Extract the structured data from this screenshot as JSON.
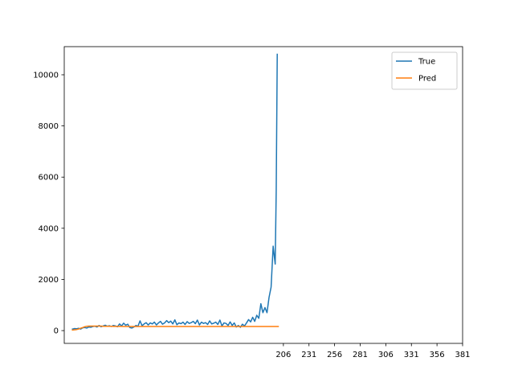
{
  "chart_data": {
    "type": "line",
    "x": [
      0,
      2,
      4,
      6,
      8,
      10,
      12,
      14,
      16,
      18,
      20,
      22,
      24,
      26,
      28,
      30,
      32,
      34,
      36,
      38,
      40,
      42,
      44,
      46,
      48,
      50,
      52,
      54,
      56,
      58,
      60,
      62,
      64,
      66,
      68,
      70,
      72,
      74,
      76,
      78,
      80,
      82,
      84,
      86,
      88,
      90,
      92,
      94,
      96,
      98,
      100,
      102,
      104,
      106,
      108,
      110,
      112,
      114,
      116,
      118,
      120,
      122,
      124,
      126,
      128,
      130,
      132,
      134,
      136,
      138,
      140,
      142,
      144,
      146,
      148,
      150,
      152,
      154,
      156,
      158,
      160,
      162,
      164,
      166,
      168,
      170,
      172,
      174,
      176,
      178,
      180,
      182,
      184,
      186,
      188,
      190,
      192,
      194,
      196,
      198,
      199,
      200,
      201
    ],
    "series": [
      {
        "name": "True",
        "color": "#1f77b4",
        "values": [
          60,
          80,
          70,
          90,
          60,
          110,
          120,
          100,
          140,
          130,
          160,
          170,
          140,
          200,
          150,
          180,
          210,
          170,
          190,
          160,
          200,
          180,
          150,
          260,
          180,
          290,
          210,
          250,
          120,
          100,
          140,
          200,
          170,
          380,
          190,
          260,
          310,
          220,
          300,
          260,
          330,
          220,
          300,
          360,
          250,
          300,
          390,
          310,
          370,
          260,
          420,
          230,
          300,
          270,
          330,
          240,
          350,
          280,
          310,
          360,
          270,
          410,
          220,
          330,
          280,
          310,
          240,
          380,
          260,
          290,
          330,
          240,
          410,
          180,
          300,
          280,
          200,
          340,
          200,
          300,
          140,
          200,
          130,
          250,
          180,
          300,
          430,
          340,
          520,
          360,
          600,
          480,
          1050,
          700,
          900,
          700,
          1300,
          1700,
          3300,
          2600,
          5500,
          10800,
          null
        ]
      },
      {
        "name": "Pred",
        "color": "#ff7f0e",
        "values": [
          20,
          30,
          40,
          60,
          90,
          120,
          150,
          170,
          175,
          175,
          175,
          175,
          175,
          175,
          175,
          170,
          170,
          170,
          170,
          170,
          165,
          165,
          165,
          165,
          165,
          160,
          160,
          160,
          160,
          160,
          160,
          160,
          160,
          160,
          160,
          160,
          160,
          160,
          160,
          160,
          160,
          160,
          160,
          160,
          160,
          160,
          160,
          160,
          160,
          160,
          160,
          160,
          160,
          160,
          160,
          160,
          160,
          160,
          160,
          160,
          160,
          160,
          160,
          160,
          160,
          160,
          160,
          160,
          160,
          160,
          160,
          160,
          160,
          160,
          160,
          160,
          160,
          160,
          160,
          160,
          160,
          160,
          160,
          160,
          160,
          160,
          160,
          160,
          160,
          160,
          160,
          160,
          160,
          160,
          160,
          160,
          160,
          160,
          160,
          160,
          160,
          160,
          160
        ]
      }
    ],
    "xticks": [
      "206",
      "231",
      "256",
      "281",
      "306",
      "331",
      "356",
      "381"
    ],
    "yticks": [
      "0",
      "2000",
      "4000",
      "6000",
      "8000",
      "10000"
    ],
    "ylim": [
      -500,
      11100
    ],
    "xlim": [
      -8,
      381
    ],
    "legend_position": "top-right",
    "title": "",
    "xlabel": "",
    "ylabel": ""
  }
}
